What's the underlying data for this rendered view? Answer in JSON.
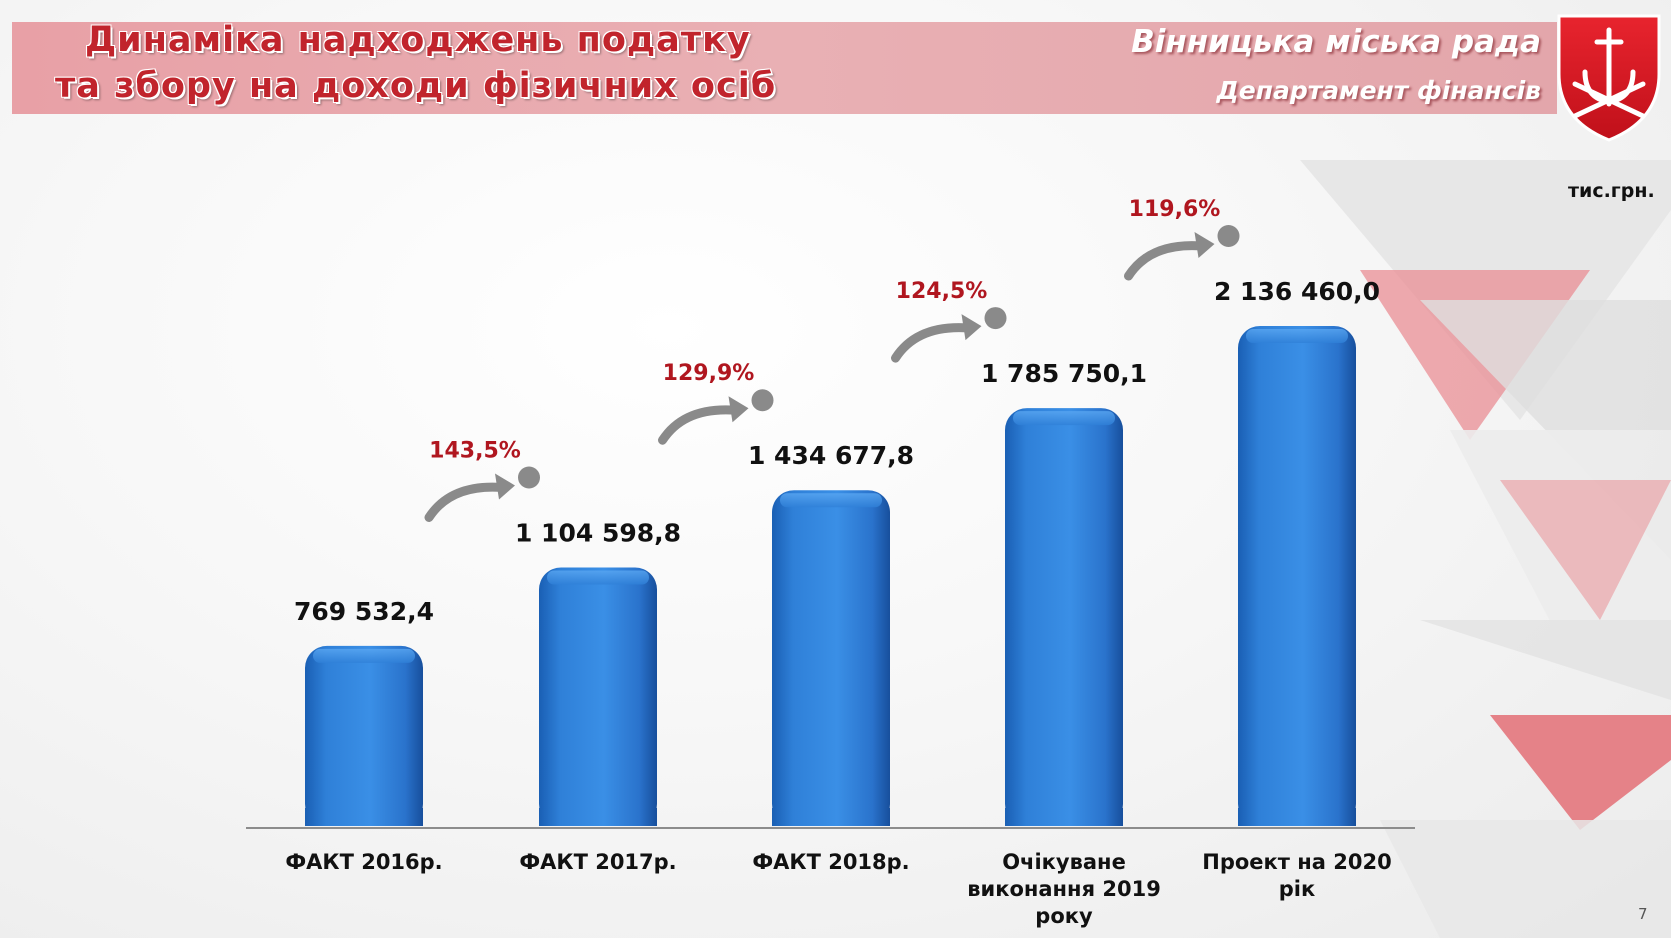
{
  "header": {
    "title_line1": "Динаміка надходжень податку",
    "title_line2": "та збору на доходи фізичних осіб",
    "org_name": "Вінницька міська рада",
    "org_dept": "Департамент фінансів"
  },
  "unit_label": "тис.грн.",
  "page_number": "7",
  "chart_data": {
    "type": "bar",
    "categories": [
      [
        "ФАКТ 2016р."
      ],
      [
        "ФАКТ 2017р."
      ],
      [
        "ФАКТ 2018р."
      ],
      [
        "Очікуване",
        "виконання 2019",
        "року"
      ],
      [
        "Проект на 2020",
        "рік"
      ]
    ],
    "values": [
      769532.4,
      1104598.8,
      1434677.8,
      1785750.1,
      2136460.0
    ],
    "value_labels": [
      "769 532,4",
      "1 104 598,8",
      "1 434 677,8",
      "1 785 750,1",
      "2 136 460,0"
    ],
    "growth_labels": [
      "143,5%",
      "129,9%",
      "124,5%",
      "119,6%"
    ],
    "unit": "тис.грн.",
    "bar_color": "#2f80d8",
    "growth_color": "#b0161f",
    "arrow_color": "#8a8a8a"
  }
}
